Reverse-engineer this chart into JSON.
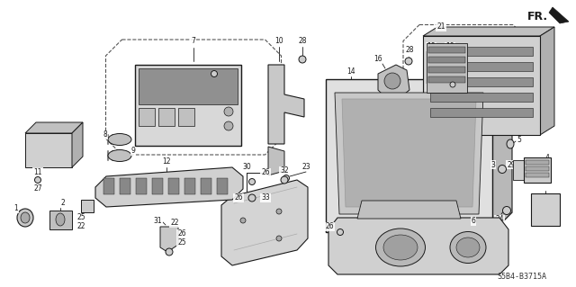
{
  "diagram_code": "S5B4-B3715A",
  "fr_label": "FR.",
  "bg_color": "#ffffff",
  "line_color": "#1a1a1a",
  "label_fontsize": 5.5,
  "code_fontsize": 6.0,
  "fig_w": 6.4,
  "fig_h": 3.19,
  "dpi": 100
}
